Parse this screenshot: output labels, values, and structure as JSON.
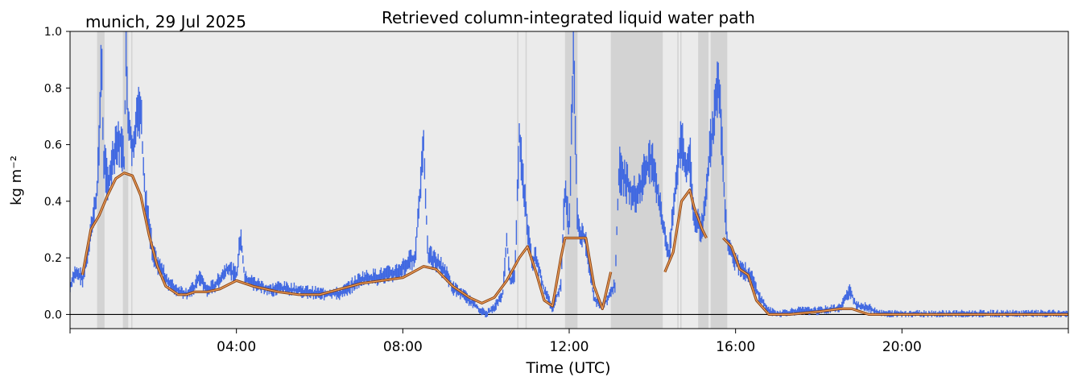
{
  "chart_data": {
    "type": "scatter",
    "title": "Retrieved column-integrated liquid water path",
    "subtitle": "munich, 29 Jul 2025",
    "xlabel": "Time (UTC)",
    "ylabel": "kg m⁻²",
    "xlim": [
      0,
      24
    ],
    "ylim": [
      -0.05,
      1.0
    ],
    "xticks": [
      {
        "value": 4,
        "label": "04:00"
      },
      {
        "value": 8,
        "label": "08:00"
      },
      {
        "value": 12,
        "label": "12:00"
      },
      {
        "value": 16,
        "label": "16:00"
      },
      {
        "value": 20,
        "label": "20:00"
      }
    ],
    "yticks": [
      {
        "value": 0.0,
        "label": "0.0"
      },
      {
        "value": 0.2,
        "label": "0.2"
      },
      {
        "value": 0.4,
        "label": "0.4"
      },
      {
        "value": 0.6,
        "label": "0.6"
      },
      {
        "value": 0.8,
        "label": "0.8"
      },
      {
        "value": 1.0,
        "label": "1.0"
      }
    ],
    "zero_line": 0.0,
    "grid": false,
    "colors": {
      "background": "#ebebeb",
      "flag_band": "#d3d3d3",
      "points": "#4169e1",
      "smooth_outer": "#8b4513",
      "smooth_inner": "#f4a460"
    },
    "flagged_intervals": [
      [
        0.65,
        0.83
      ],
      [
        1.27,
        1.4
      ],
      [
        1.47,
        1.5
      ],
      [
        10.75,
        10.78
      ],
      [
        10.95,
        10.98
      ],
      [
        11.9,
        12.2
      ],
      [
        13.0,
        14.25
      ],
      [
        14.6,
        14.63
      ],
      [
        14.67,
        14.7
      ],
      [
        15.1,
        15.35
      ],
      [
        15.4,
        15.8
      ]
    ],
    "raw_series": [
      [
        0.0,
        0.09
      ],
      [
        0.15,
        0.15
      ],
      [
        0.3,
        0.12
      ],
      [
        0.45,
        0.22
      ],
      [
        0.55,
        0.33
      ],
      [
        0.65,
        0.42
      ],
      [
        0.72,
        0.7
      ],
      [
        0.76,
        0.9
      ],
      [
        0.8,
        0.55
      ],
      [
        0.9,
        0.45
      ],
      [
        1.0,
        0.5
      ],
      [
        1.1,
        0.56
      ],
      [
        1.2,
        0.6
      ],
      [
        1.3,
        0.52
      ],
      [
        1.35,
        0.93
      ],
      [
        1.4,
        0.65
      ],
      [
        1.5,
        0.58
      ],
      [
        1.6,
        0.66
      ],
      [
        1.7,
        0.7
      ],
      [
        1.8,
        0.4
      ],
      [
        1.9,
        0.3
      ],
      [
        2.0,
        0.2
      ],
      [
        2.2,
        0.15
      ],
      [
        2.4,
        0.1
      ],
      [
        2.6,
        0.08
      ],
      [
        2.8,
        0.07
      ],
      [
        3.0,
        0.09
      ],
      [
        3.1,
        0.13
      ],
      [
        3.3,
        0.08
      ],
      [
        3.5,
        0.1
      ],
      [
        3.8,
        0.16
      ],
      [
        4.0,
        0.13
      ],
      [
        4.1,
        0.27
      ],
      [
        4.2,
        0.12
      ],
      [
        4.5,
        0.1
      ],
      [
        4.8,
        0.08
      ],
      [
        5.0,
        0.09
      ],
      [
        5.5,
        0.08
      ],
      [
        6.0,
        0.07
      ],
      [
        6.5,
        0.07
      ],
      [
        7.0,
        0.12
      ],
      [
        7.5,
        0.13
      ],
      [
        7.8,
        0.14
      ],
      [
        8.0,
        0.16
      ],
      [
        8.3,
        0.2
      ],
      [
        8.5,
        0.6
      ],
      [
        8.6,
        0.2
      ],
      [
        8.8,
        0.18
      ],
      [
        9.0,
        0.15
      ],
      [
        9.2,
        0.09
      ],
      [
        9.5,
        0.06
      ],
      [
        9.8,
        0.02
      ],
      [
        10.0,
        0.0
      ],
      [
        10.2,
        0.02
      ],
      [
        10.4,
        0.07
      ],
      [
        10.5,
        0.25
      ],
      [
        10.6,
        0.1
      ],
      [
        10.7,
        0.15
      ],
      [
        10.8,
        0.62
      ],
      [
        10.9,
        0.45
      ],
      [
        11.0,
        0.3
      ],
      [
        11.1,
        0.18
      ],
      [
        11.2,
        0.2
      ],
      [
        11.4,
        0.08
      ],
      [
        11.6,
        0.02
      ],
      [
        11.8,
        0.1
      ],
      [
        11.9,
        0.45
      ],
      [
        12.0,
        0.28
      ],
      [
        12.1,
        0.95
      ],
      [
        12.2,
        0.3
      ],
      [
        12.4,
        0.25
      ],
      [
        12.6,
        0.05
      ],
      [
        12.8,
        0.02
      ],
      [
        13.1,
        0.1
      ],
      [
        13.2,
        0.5
      ],
      [
        13.6,
        0.4
      ],
      [
        14.0,
        0.55
      ],
      [
        14.2,
        0.35
      ],
      [
        14.4,
        0.2
      ],
      [
        14.5,
        0.35
      ],
      [
        14.7,
        0.62
      ],
      [
        14.8,
        0.5
      ],
      [
        14.9,
        0.55
      ],
      [
        15.0,
        0.32
      ],
      [
        15.2,
        0.3
      ],
      [
        15.4,
        0.58
      ],
      [
        15.6,
        0.8
      ],
      [
        15.7,
        0.5
      ],
      [
        15.8,
        0.25
      ],
      [
        16.0,
        0.18
      ],
      [
        16.2,
        0.15
      ],
      [
        16.4,
        0.12
      ],
      [
        16.6,
        0.05
      ],
      [
        16.8,
        0.01
      ],
      [
        17.0,
        0.0
      ],
      [
        17.5,
        0.01
      ],
      [
        18.0,
        0.01
      ],
      [
        18.5,
        0.02
      ],
      [
        18.75,
        0.08
      ],
      [
        18.9,
        0.03
      ],
      [
        19.2,
        0.02
      ],
      [
        19.5,
        0.0
      ],
      [
        20.0,
        0.0
      ],
      [
        21.0,
        0.0
      ],
      [
        22.0,
        0.0
      ],
      [
        23.0,
        0.0
      ],
      [
        24.0,
        0.0
      ]
    ],
    "smoothed_series": [
      [
        [
          0.3,
          0.14
        ],
        [
          0.5,
          0.3
        ],
        [
          0.7,
          0.35
        ],
        [
          0.9,
          0.42
        ],
        [
          1.1,
          0.48
        ],
        [
          1.3,
          0.5
        ],
        [
          1.5,
          0.49
        ],
        [
          1.7,
          0.42
        ],
        [
          1.9,
          0.28
        ],
        [
          2.1,
          0.17
        ],
        [
          2.3,
          0.1
        ],
        [
          2.6,
          0.07
        ],
        [
          2.8,
          0.07
        ],
        [
          3.0,
          0.08
        ],
        [
          3.3,
          0.08
        ],
        [
          3.6,
          0.09
        ],
        [
          4.0,
          0.12
        ],
        [
          4.4,
          0.1
        ],
        [
          5.0,
          0.08
        ],
        [
          5.5,
          0.07
        ],
        [
          6.0,
          0.07
        ],
        [
          6.5,
          0.09
        ],
        [
          7.0,
          0.11
        ],
        [
          7.5,
          0.12
        ],
        [
          8.0,
          0.13
        ],
        [
          8.5,
          0.17
        ],
        [
          8.8,
          0.16
        ],
        [
          9.2,
          0.1
        ],
        [
          9.6,
          0.06
        ],
        [
          9.9,
          0.04
        ],
        [
          10.2,
          0.06
        ],
        [
          10.5,
          0.12
        ],
        [
          10.8,
          0.2
        ],
        [
          11.0,
          0.24
        ],
        [
          11.2,
          0.15
        ],
        [
          11.4,
          0.05
        ],
        [
          11.6,
          0.03
        ],
        [
          11.8,
          0.2
        ],
        [
          11.9,
          0.27
        ],
        [
          12.1,
          0.27
        ],
        [
          12.4,
          0.27
        ],
        [
          12.6,
          0.1
        ],
        [
          12.8,
          0.02
        ],
        [
          13.0,
          0.15
        ]
      ],
      [
        [
          14.3,
          0.15
        ],
        [
          14.5,
          0.22
        ],
        [
          14.7,
          0.4
        ],
        [
          14.9,
          0.44
        ],
        [
          15.0,
          0.38
        ],
        [
          15.2,
          0.3
        ],
        [
          15.3,
          0.27
        ]
      ],
      [
        [
          15.7,
          0.27
        ],
        [
          15.9,
          0.24
        ],
        [
          16.1,
          0.16
        ],
        [
          16.3,
          0.14
        ],
        [
          16.5,
          0.05
        ],
        [
          16.8,
          0.0
        ],
        [
          17.3,
          0.0
        ],
        [
          18.0,
          0.01
        ],
        [
          18.5,
          0.02
        ],
        [
          18.8,
          0.02
        ],
        [
          19.2,
          0.0
        ],
        [
          20.0,
          0.0
        ],
        [
          21.0,
          0.0
        ],
        [
          22.0,
          0.0
        ],
        [
          23.0,
          0.0
        ],
        [
          24.0,
          0.0
        ]
      ]
    ]
  }
}
